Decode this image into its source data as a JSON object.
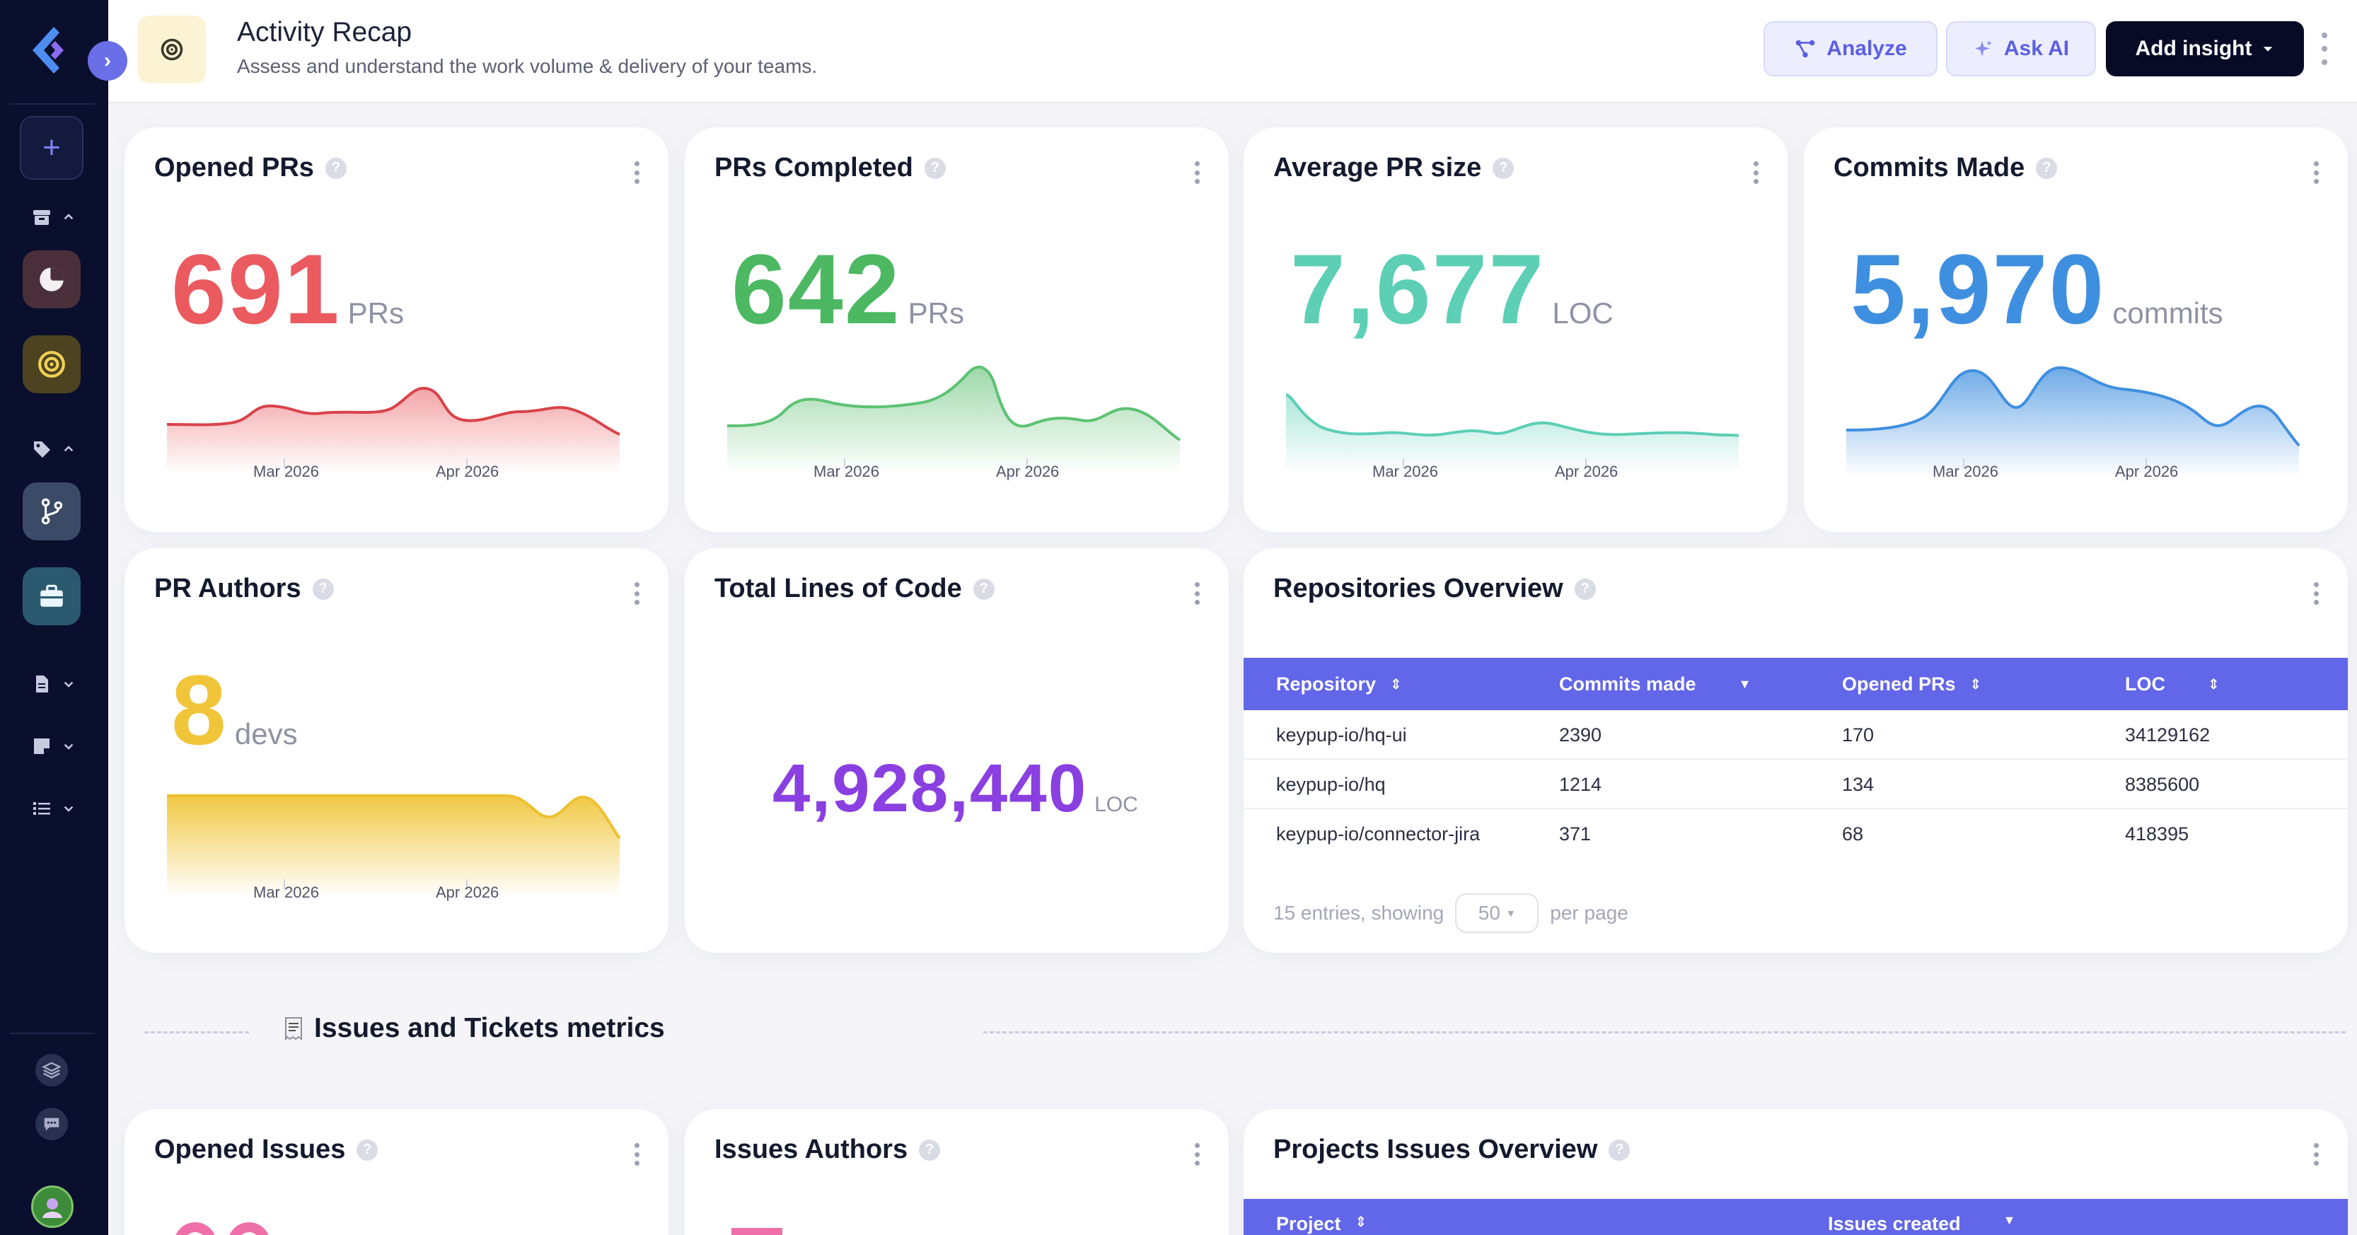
{
  "header": {
    "title": "Activity Recap",
    "subtitle": "Assess and understand the work volume & delivery of your teams.",
    "buttons": {
      "analyze": "Analyze",
      "ask_ai": "Ask AI",
      "add_insight": "Add insight"
    }
  },
  "cards": {
    "opened_prs": {
      "title": "Opened PRs",
      "value": "691",
      "unit": "PRs",
      "color": "#ea5a5f",
      "x_labels": [
        "Mar 2026",
        "Apr 2026"
      ]
    },
    "prs_completed": {
      "title": "PRs Completed",
      "value": "642",
      "unit": "PRs",
      "color": "#4cb862",
      "x_labels": [
        "Mar 2026",
        "Apr 2026"
      ]
    },
    "avg_pr_size": {
      "title": "Average PR size",
      "value": "7,677",
      "unit": "LOC",
      "color": "#5ccfb4",
      "x_labels": [
        "Mar 2026",
        "Apr 2026"
      ]
    },
    "commits_made": {
      "title": "Commits Made",
      "value": "5,970",
      "unit": "commits",
      "color": "#3f8fe0",
      "x_labels": [
        "Mar 2026",
        "Apr 2026"
      ]
    },
    "pr_authors": {
      "title": "PR Authors",
      "value": "8",
      "unit": "devs",
      "color": "#f0c53a",
      "x_labels": [
        "Mar 2026",
        "Apr 2026"
      ]
    },
    "total_loc": {
      "title": "Total Lines of Code",
      "value": "4,928,440",
      "unit": "LOC",
      "color": "#8a3fe0"
    }
  },
  "repos": {
    "title": "Repositories Overview",
    "columns": [
      "Repository",
      "Commits made",
      "Opened PRs",
      "LOC"
    ],
    "rows": [
      [
        "keypup-io/hq-ui",
        "2390",
        "170",
        "34129162"
      ],
      [
        "keypup-io/hq",
        "1214",
        "134",
        "8385600"
      ],
      [
        "keypup-io/connector-jira",
        "371",
        "68",
        "418395"
      ]
    ],
    "pager_prefix": "15 entries, showing",
    "pager_value": "50",
    "pager_suffix": "per page"
  },
  "section": {
    "title": "Issues and Tickets metrics"
  },
  "issues": {
    "opened_issues_title": "Opened Issues",
    "issues_authors_title": "Issues Authors",
    "projects_title": "Projects Issues Overview",
    "project_columns": [
      "Project",
      "Issues created"
    ]
  },
  "theme": {
    "accent": "#6266e8",
    "sidebar": "#0a0f2e"
  }
}
